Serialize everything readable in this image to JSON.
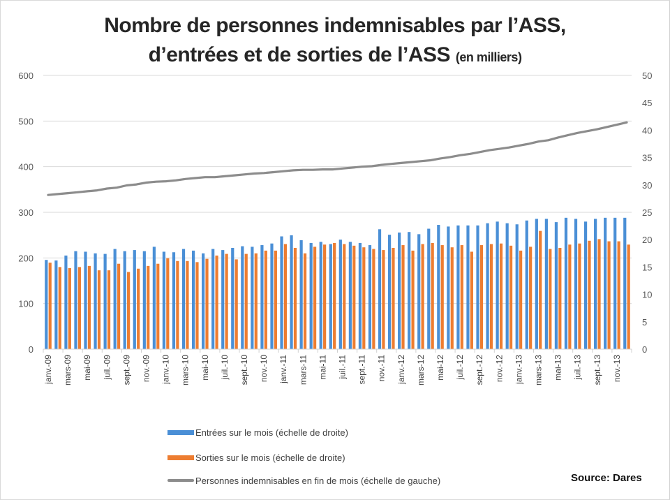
{
  "chart_data": {
    "type": "bar",
    "title_line1": "Nombre de personnes indemnisables par l’ASS,",
    "title_line2": "d’entrées et de sorties de l’ASS",
    "title_suffix": "(en milliers)",
    "xlabel": "",
    "ylabel_left": "",
    "ylabel_right": "",
    "ylim_left": [
      0,
      600
    ],
    "ylim_right": [
      0,
      50
    ],
    "yticks_left": [
      "0",
      "100",
      "200",
      "300",
      "400",
      "500",
      "600"
    ],
    "yticks_right": [
      "0",
      "5",
      "10",
      "15",
      "20",
      "25",
      "30",
      "35",
      "40",
      "45",
      "50"
    ],
    "grid": true,
    "legend_position": "bottom",
    "categories": [
      "janv.-09",
      "févr.-09",
      "mars-09",
      "avr.-09",
      "mai-09",
      "juin-09",
      "juil.-09",
      "août-09",
      "sept.-09",
      "oct.-09",
      "nov.-09",
      "déc.-09",
      "janv.-10",
      "févr.-10",
      "mars-10",
      "avr.-10",
      "mai-10",
      "juin-10",
      "juil.-10",
      "août-10",
      "sept.-10",
      "oct.-10",
      "nov.-10",
      "déc.-10",
      "janv.-11",
      "févr.-11",
      "mars-11",
      "avr.-11",
      "mai-11",
      "juin-11",
      "juil.-11",
      "août-11",
      "sept.-11",
      "oct.-11",
      "nov.-11",
      "déc.-11",
      "janv.-12",
      "févr.-12",
      "mars-12",
      "avr.-12",
      "mai-12",
      "juin-12",
      "juil.-12",
      "août-12",
      "sept.-12",
      "oct.-12",
      "nov.-12",
      "déc.-12",
      "janv.-13",
      "févr.-13",
      "mars-13",
      "avr.-13",
      "mai-13",
      "juin-13",
      "juil.-13",
      "août-13",
      "sept.-13",
      "oct.-13",
      "nov.-13",
      "déc.-13"
    ],
    "visible_xticks": [
      "janv.-09",
      "mars-09",
      "mai-09",
      "juil.-09",
      "sept.-09",
      "nov.-09",
      "janv.-10",
      "mars-10",
      "mai-10",
      "juil.-10",
      "sept.-10",
      "nov.-10",
      "janv.-11",
      "mars-11",
      "mai-11",
      "juil.-11",
      "sept.-11",
      "nov.-11",
      "janv.-12",
      "mars-12",
      "mai-12",
      "juil.-12",
      "sept.-12",
      "nov.-12",
      "janv.-13",
      "mars-13",
      "mai-13",
      "juil.-13",
      "sept.-13",
      "nov.-13"
    ],
    "series": [
      {
        "name": "Entrées sur le mois (échelle de droite)",
        "type": "bar",
        "axis": "right",
        "color": "#4a8fd6",
        "values": [
          16.3,
          16.2,
          17.1,
          17.9,
          17.8,
          17.5,
          17.4,
          18.3,
          17.9,
          18.1,
          17.9,
          18.7,
          17.8,
          17.7,
          18.3,
          18.0,
          17.5,
          18.3,
          18.1,
          18.5,
          18.8,
          18.7,
          19.0,
          19.3,
          20.6,
          20.8,
          19.9,
          19.4,
          19.6,
          19.2,
          20.0,
          19.6,
          19.4,
          19.0,
          21.9,
          20.9,
          21.3,
          21.4,
          21.0,
          22.0,
          22.7,
          22.4,
          22.6,
          22.6,
          22.6,
          23.0,
          23.3,
          23.0,
          22.8,
          23.5,
          23.8,
          23.8,
          23.2,
          24.0,
          23.8,
          23.3,
          23.8,
          24.0,
          24.0,
          24.0
        ]
      },
      {
        "name": "Sorties sur le mois (échelle de droite)",
        "type": "bar",
        "axis": "right",
        "color": "#ed7d31",
        "values": [
          15.8,
          15.0,
          14.8,
          15.0,
          15.2,
          14.4,
          14.4,
          15.6,
          14.1,
          14.7,
          15.2,
          15.6,
          16.6,
          16.1,
          16.1,
          15.9,
          16.5,
          17.1,
          17.4,
          16.4,
          17.4,
          17.5,
          18.0,
          18.0,
          19.2,
          18.5,
          17.5,
          18.7,
          19.1,
          19.4,
          19.2,
          18.9,
          18.6,
          18.3,
          18.1,
          18.5,
          19.0,
          18.0,
          19.2,
          19.4,
          19.0,
          18.6,
          19.0,
          17.8,
          19.0,
          19.2,
          19.3,
          18.9,
          18.0,
          18.7,
          21.6,
          18.3,
          18.5,
          19.1,
          19.3,
          19.8,
          20.1,
          19.7,
          19.7,
          19.1
        ]
      },
      {
        "name": "Personnes indemnisables en fin de mois (échelle de gauche)",
        "type": "line",
        "axis": "left",
        "color": "#8c8c8c",
        "values": [
          338,
          340,
          342,
          344,
          346,
          348,
          352,
          354,
          359,
          361,
          365,
          367,
          368,
          370,
          373,
          375,
          377,
          377,
          379,
          381,
          383,
          385,
          386,
          388,
          390,
          392,
          393,
          393,
          394,
          394,
          396,
          398,
          400,
          401,
          404,
          406,
          408,
          410,
          412,
          414,
          418,
          421,
          425,
          428,
          432,
          436,
          439,
          442,
          446,
          450,
          455,
          458,
          464,
          469,
          474,
          478,
          482,
          487,
          492,
          497
        ]
      }
    ],
    "source": "Source: Dares"
  }
}
